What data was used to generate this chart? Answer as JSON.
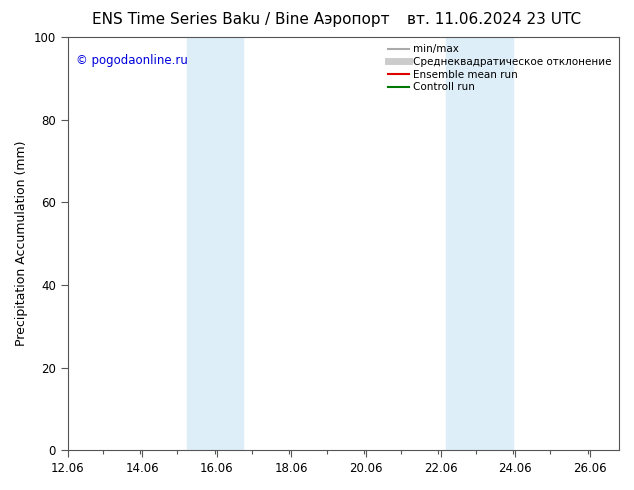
{
  "title": "ENS Time Series Baku / Bine Аэропорт",
  "title_right": "вт. 11.06.2024 23 UTC",
  "ylabel": "Precipitation Accumulation (mm)",
  "watermark": "© pogodaonline.ru",
  "watermark_color": "#0000dd",
  "xlim_left": 12.06,
  "xlim_right": 26.84,
  "ylim_bottom": 0,
  "ylim_top": 100,
  "yticks": [
    0,
    20,
    40,
    60,
    80,
    100
  ],
  "xtick_labels": [
    "12.06",
    "14.06",
    "16.06",
    "18.06",
    "20.06",
    "22.06",
    "24.06",
    "26.06"
  ],
  "xtick_positions": [
    12.06,
    14.06,
    16.06,
    18.06,
    20.06,
    22.06,
    24.06,
    26.06
  ],
  "shaded_regions": [
    {
      "x_start": 15.25,
      "x_end": 16.75,
      "color": "#ddeef8"
    },
    {
      "x_start": 22.2,
      "x_end": 24.0,
      "color": "#ddeef8"
    }
  ],
  "legend_entries": [
    {
      "label": "min/max",
      "color": "#aaaaaa",
      "lw": 1.5,
      "type": "line"
    },
    {
      "label": "Среднеквадратическое отклонение",
      "color": "#cccccc",
      "lw": 5,
      "type": "line"
    },
    {
      "label": "Ensemble mean run",
      "color": "#dd0000",
      "lw": 1.5,
      "type": "line"
    },
    {
      "label": "Controll run",
      "color": "#007700",
      "lw": 1.5,
      "type": "line"
    }
  ],
  "bg_color": "#ffffff",
  "plot_bg_color": "#ffffff",
  "spine_color": "#555555",
  "title_fontsize": 11,
  "tick_fontsize": 8.5,
  "ylabel_fontsize": 9,
  "legend_fontsize": 7.5,
  "watermark_fontsize": 8.5
}
